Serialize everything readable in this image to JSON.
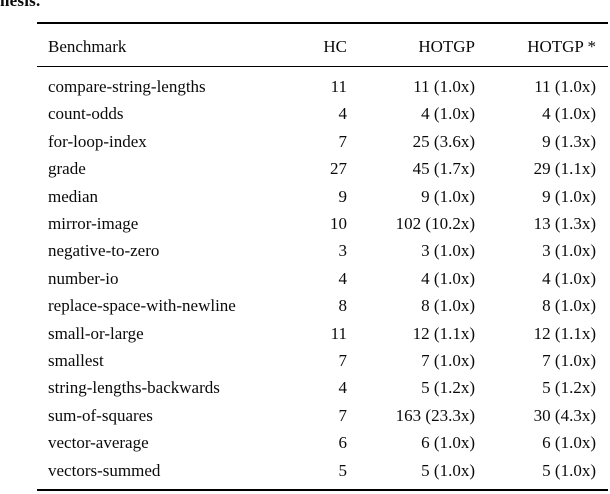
{
  "caption_fragment": "hesis.",
  "table": {
    "columns": [
      {
        "key": "benchmark",
        "label": "Benchmark"
      },
      {
        "key": "hc",
        "label": "HC"
      },
      {
        "key": "hotgp",
        "label": "HOTGP"
      },
      {
        "key": "hotgp_star",
        "label": "HOTGP *"
      }
    ],
    "rows": [
      [
        "compare-string-lengths",
        "11",
        "11 (1.0x)",
        "11 (1.0x)"
      ],
      [
        "count-odds",
        "4",
        "4 (1.0x)",
        "4 (1.0x)"
      ],
      [
        "for-loop-index",
        "7",
        "25 (3.6x)",
        "9 (1.3x)"
      ],
      [
        "grade",
        "27",
        "45 (1.7x)",
        "29 (1.1x)"
      ],
      [
        "median",
        "9",
        "9 (1.0x)",
        "9 (1.0x)"
      ],
      [
        "mirror-image",
        "10",
        "102 (10.2x)",
        "13 (1.3x)"
      ],
      [
        "negative-to-zero",
        "3",
        "3 (1.0x)",
        "3 (1.0x)"
      ],
      [
        "number-io",
        "4",
        "4 (1.0x)",
        "4 (1.0x)"
      ],
      [
        "replace-space-with-newline",
        "8",
        "8 (1.0x)",
        "8 (1.0x)"
      ],
      [
        "small-or-large",
        "11",
        "12 (1.1x)",
        "12 (1.1x)"
      ],
      [
        "smallest",
        "7",
        "7 (1.0x)",
        "7 (1.0x)"
      ],
      [
        "string-lengths-backwards",
        "4",
        "5 (1.2x)",
        "5 (1.2x)"
      ],
      [
        "sum-of-squares",
        "7",
        "163 (23.3x)",
        "30 (4.3x)"
      ],
      [
        "vector-average",
        "6",
        "6 (1.0x)",
        "6 (1.0x)"
      ],
      [
        "vectors-summed",
        "5",
        "5 (1.0x)",
        "5 (1.0x)"
      ]
    ]
  },
  "colors": {
    "text": "#0a0a0a",
    "rule": "#000000",
    "background": "#ffffff"
  }
}
